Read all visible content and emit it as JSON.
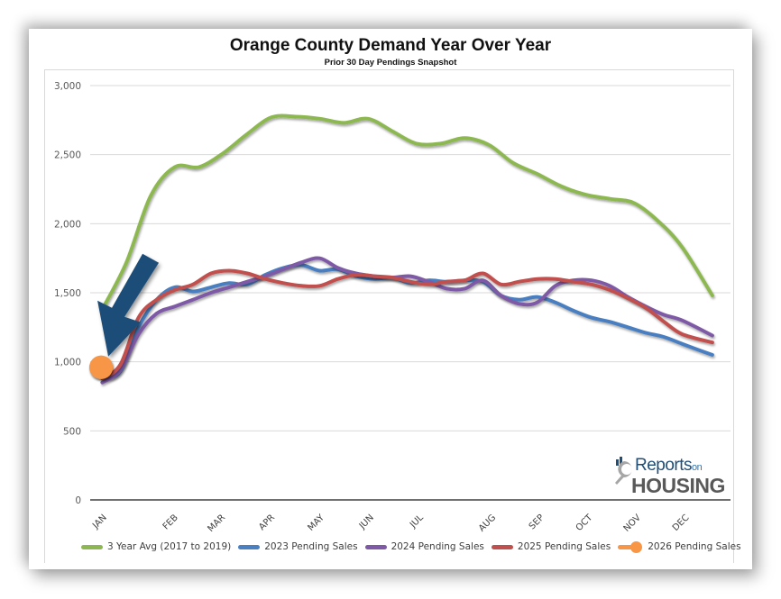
{
  "chart_data": {
    "type": "line",
    "title": "Orange County Demand Year Over Year",
    "subtitle": "Prior 30 Day Pendings Snapshot",
    "xlabel": "",
    "ylabel": "",
    "ylim": [
      0,
      3000
    ],
    "yticks": [
      0,
      500,
      1000,
      1500,
      2000,
      2500,
      3000
    ],
    "ytick_labels": [
      "0",
      "500",
      "1,000",
      "1,500",
      "2,000",
      "2,500",
      "3,000"
    ],
    "x_unit": "week of year",
    "xlim": [
      0,
      53
    ],
    "xticks": [
      {
        "label": "JAN",
        "x": 0.8
      },
      {
        "label": "FEB",
        "x": 6.7
      },
      {
        "label": "MAR",
        "x": 10.6
      },
      {
        "label": "APR",
        "x": 14.7
      },
      {
        "label": "MAY",
        "x": 18.8
      },
      {
        "label": "JUN",
        "x": 22.9
      },
      {
        "label": "JUL",
        "x": 27.0
      },
      {
        "label": "AUG",
        "x": 33.0
      },
      {
        "label": "SEP",
        "x": 37.0
      },
      {
        "label": "OCT",
        "x": 41.0
      },
      {
        "label": "NOV",
        "x": 45.0
      },
      {
        "label": "DEC",
        "x": 49.0
      }
    ],
    "grid": true,
    "legend_position": "bottom",
    "series": [
      {
        "name": "3 Year Avg (2017 to 2019)",
        "color": "#8db851",
        "x": [
          1,
          3,
          5,
          7,
          9,
          11,
          13,
          15,
          17,
          19,
          21,
          23,
          25,
          27,
          29,
          31,
          33,
          35,
          37,
          39,
          41,
          43,
          45,
          47,
          49,
          51.5
        ],
        "values": [
          1380,
          1720,
          2200,
          2410,
          2410,
          2510,
          2650,
          2770,
          2775,
          2760,
          2730,
          2760,
          2670,
          2580,
          2580,
          2620,
          2570,
          2440,
          2360,
          2270,
          2210,
          2180,
          2150,
          2020,
          1830,
          1480
        ]
      },
      {
        "name": "2023 Pending Sales",
        "color": "#4a7fc1",
        "x": [
          1,
          2.5,
          4,
          5.5,
          7,
          8.5,
          10,
          11.5,
          13,
          14.5,
          16,
          17.5,
          19,
          20.5,
          22,
          23.5,
          25,
          26.5,
          28,
          29.5,
          31,
          32.5,
          34,
          35.5,
          37,
          38.5,
          40,
          41.5,
          43,
          44.5,
          46,
          47.5,
          49,
          51.5
        ],
        "values": [
          880,
          930,
          1250,
          1450,
          1540,
          1510,
          1540,
          1570,
          1560,
          1630,
          1680,
          1700,
          1660,
          1670,
          1620,
          1600,
          1610,
          1570,
          1590,
          1580,
          1590,
          1580,
          1480,
          1450,
          1470,
          1430,
          1370,
          1320,
          1290,
          1250,
          1210,
          1180,
          1130,
          1050
        ]
      },
      {
        "name": "2024 Pending Sales",
        "color": "#7e5aa6",
        "x": [
          1,
          2.5,
          4,
          5.5,
          7,
          8.5,
          10,
          11.5,
          13,
          14.5,
          16,
          17.5,
          19,
          20.5,
          22,
          23.5,
          25,
          26.5,
          28,
          29.5,
          31,
          32.5,
          34,
          35.5,
          37,
          38.5,
          40,
          41.5,
          43,
          44.5,
          46,
          47.5,
          49,
          51.5
        ],
        "values": [
          850,
          940,
          1200,
          1350,
          1400,
          1450,
          1500,
          1540,
          1580,
          1620,
          1670,
          1720,
          1750,
          1680,
          1640,
          1620,
          1610,
          1620,
          1580,
          1530,
          1530,
          1590,
          1480,
          1420,
          1430,
          1550,
          1590,
          1590,
          1550,
          1470,
          1400,
          1340,
          1300,
          1190
        ]
      },
      {
        "name": "2025 Pending Sales",
        "color": "#c0504d",
        "x": [
          1,
          2.5,
          4,
          5.5,
          7,
          8.5,
          10,
          11.5,
          13,
          14.5,
          16,
          17.5,
          19,
          20.5,
          22,
          23.5,
          25,
          26.5,
          28,
          29.5,
          31,
          32.5,
          34,
          35.5,
          37,
          38.5,
          40,
          41.5,
          43,
          44.5,
          46,
          47.5,
          49,
          51.5
        ],
        "values": [
          880,
          980,
          1320,
          1450,
          1520,
          1560,
          1640,
          1660,
          1640,
          1600,
          1570,
          1550,
          1550,
          1600,
          1630,
          1620,
          1610,
          1580,
          1560,
          1580,
          1590,
          1640,
          1560,
          1580,
          1600,
          1600,
          1580,
          1560,
          1520,
          1460,
          1390,
          1290,
          1200,
          1140
        ]
      },
      {
        "name": "2026 Pending Sales",
        "color": "#f79646",
        "x": [
          0.9
        ],
        "values": [
          960
        ]
      }
    ],
    "annotations": [
      {
        "type": "arrow",
        "color": "#1f4e79",
        "points_to": "2026 Pending Sales"
      }
    ]
  },
  "logo": {
    "line1": "Reports",
    "line1_small": "on",
    "line2": "HOUSING"
  }
}
